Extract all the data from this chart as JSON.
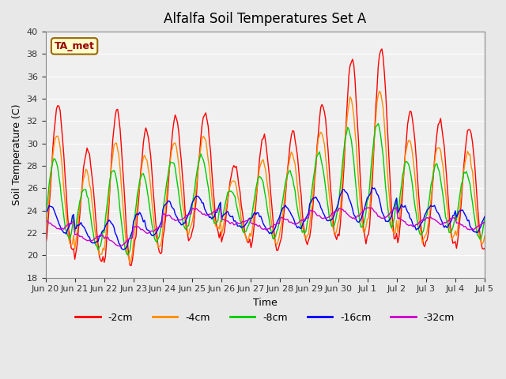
{
  "title": "Alfalfa Soil Temperatures Set A",
  "xlabel": "Time",
  "ylabel": "Soil Temperature (C)",
  "ylim": [
    18,
    40
  ],
  "yticks": [
    18,
    20,
    22,
    24,
    26,
    28,
    30,
    32,
    34,
    36,
    38,
    40
  ],
  "annotation": "TA_met",
  "colors": {
    "-2cm": "#FF0000",
    "-4cm": "#FF8C00",
    "-8cm": "#00CC00",
    "-16cm": "#0000FF",
    "-32cm": "#CC00CC"
  },
  "legend_labels": [
    "-2cm",
    "-4cm",
    "-8cm",
    "-16cm",
    "-32cm"
  ],
  "date_labels": [
    "Jun 20",
    "Jun 21",
    "Jun 22",
    "Jun 23",
    "Jun 24",
    "Jun 25",
    "Jun 26",
    "Jun 27",
    "Jun 28",
    "Jun 29",
    "Jun 30",
    "Jul 1",
    "Jul 2",
    "Jul 3",
    "Jul 4",
    "Jul 5"
  ],
  "background_color": "#E8E8E8",
  "plot_bg_color": "#F0F0F0",
  "n_days": 15,
  "pts_per_day": 24
}
